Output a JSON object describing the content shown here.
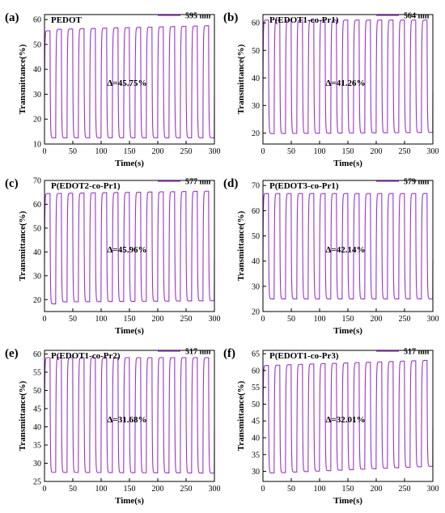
{
  "figure": {
    "xlabel": "Time(s)",
    "ylabel": "Transmittance(%)",
    "line_color": "#9933cc",
    "xlim": [
      0,
      300
    ],
    "x_ticks": [
      0,
      50,
      100,
      150,
      200,
      250,
      300
    ],
    "cycle_period_s": 20
  },
  "chart_data": [
    {
      "type": "line",
      "panel": "(a)",
      "title": "PEDOT",
      "legend": "595 nm",
      "delta": "Δ=45.75%",
      "ylim": [
        10,
        62
      ],
      "y_ticks": [
        10,
        20,
        30,
        40,
        50,
        60
      ],
      "high_start": 56.0,
      "high_end": 57.5,
      "low_start": 12.5,
      "low_end": 12.5,
      "first_high": 55.5
    },
    {
      "type": "line",
      "panel": "(b)",
      "title": "P(EDOT1-co-Pr1)",
      "legend": "564 nm",
      "delta": "Δ=41.26%",
      "ylim": [
        16,
        63
      ],
      "y_ticks": [
        20,
        30,
        40,
        50,
        60
      ],
      "high_start": 61.0,
      "high_end": 61.0,
      "low_start": 19.8,
      "low_end": 20.2
    },
    {
      "type": "line",
      "panel": "(c)",
      "title": "P(EDOT2-co-Pr1)",
      "legend": "577 nm",
      "delta": "Δ=45.96%",
      "ylim": [
        15,
        70
      ],
      "y_ticks": [
        20,
        30,
        40,
        50,
        60,
        70
      ],
      "high_start": 64.5,
      "high_end": 65.5,
      "low_start": 19.0,
      "low_end": 19.5,
      "first_low": 18.2
    },
    {
      "type": "line",
      "panel": "(d)",
      "title": "P(EDOT3-co-Pr1)",
      "legend": "579 nm",
      "delta": "Δ=42.14%",
      "ylim": [
        20,
        72
      ],
      "y_ticks": [
        20,
        30,
        40,
        50,
        60,
        70
      ],
      "high_start": 66.8,
      "high_end": 66.8,
      "low_start": 25.0,
      "low_end": 25.0
    },
    {
      "type": "line",
      "panel": "(e)",
      "title": "P(EDOT1-co-Pr2)",
      "legend": "517 nm",
      "delta": "Δ=31.68%",
      "ylim": [
        25,
        61
      ],
      "y_ticks": [
        25,
        30,
        35,
        40,
        45,
        50,
        55,
        60
      ],
      "high_start": 59.0,
      "high_end": 59.0,
      "low_start": 27.5,
      "low_end": 27.3
    },
    {
      "type": "line",
      "panel": "(f)",
      "title": "P(EDOT1-co-Pr3)",
      "legend": "517 nm",
      "delta": "Δ=32.01%",
      "ylim": [
        27,
        66
      ],
      "y_ticks": [
        30,
        35,
        40,
        45,
        50,
        55,
        60,
        65
      ],
      "high_start": 61.5,
      "high_end": 63.0,
      "low_start": 29.5,
      "low_end": 31.5
    }
  ]
}
